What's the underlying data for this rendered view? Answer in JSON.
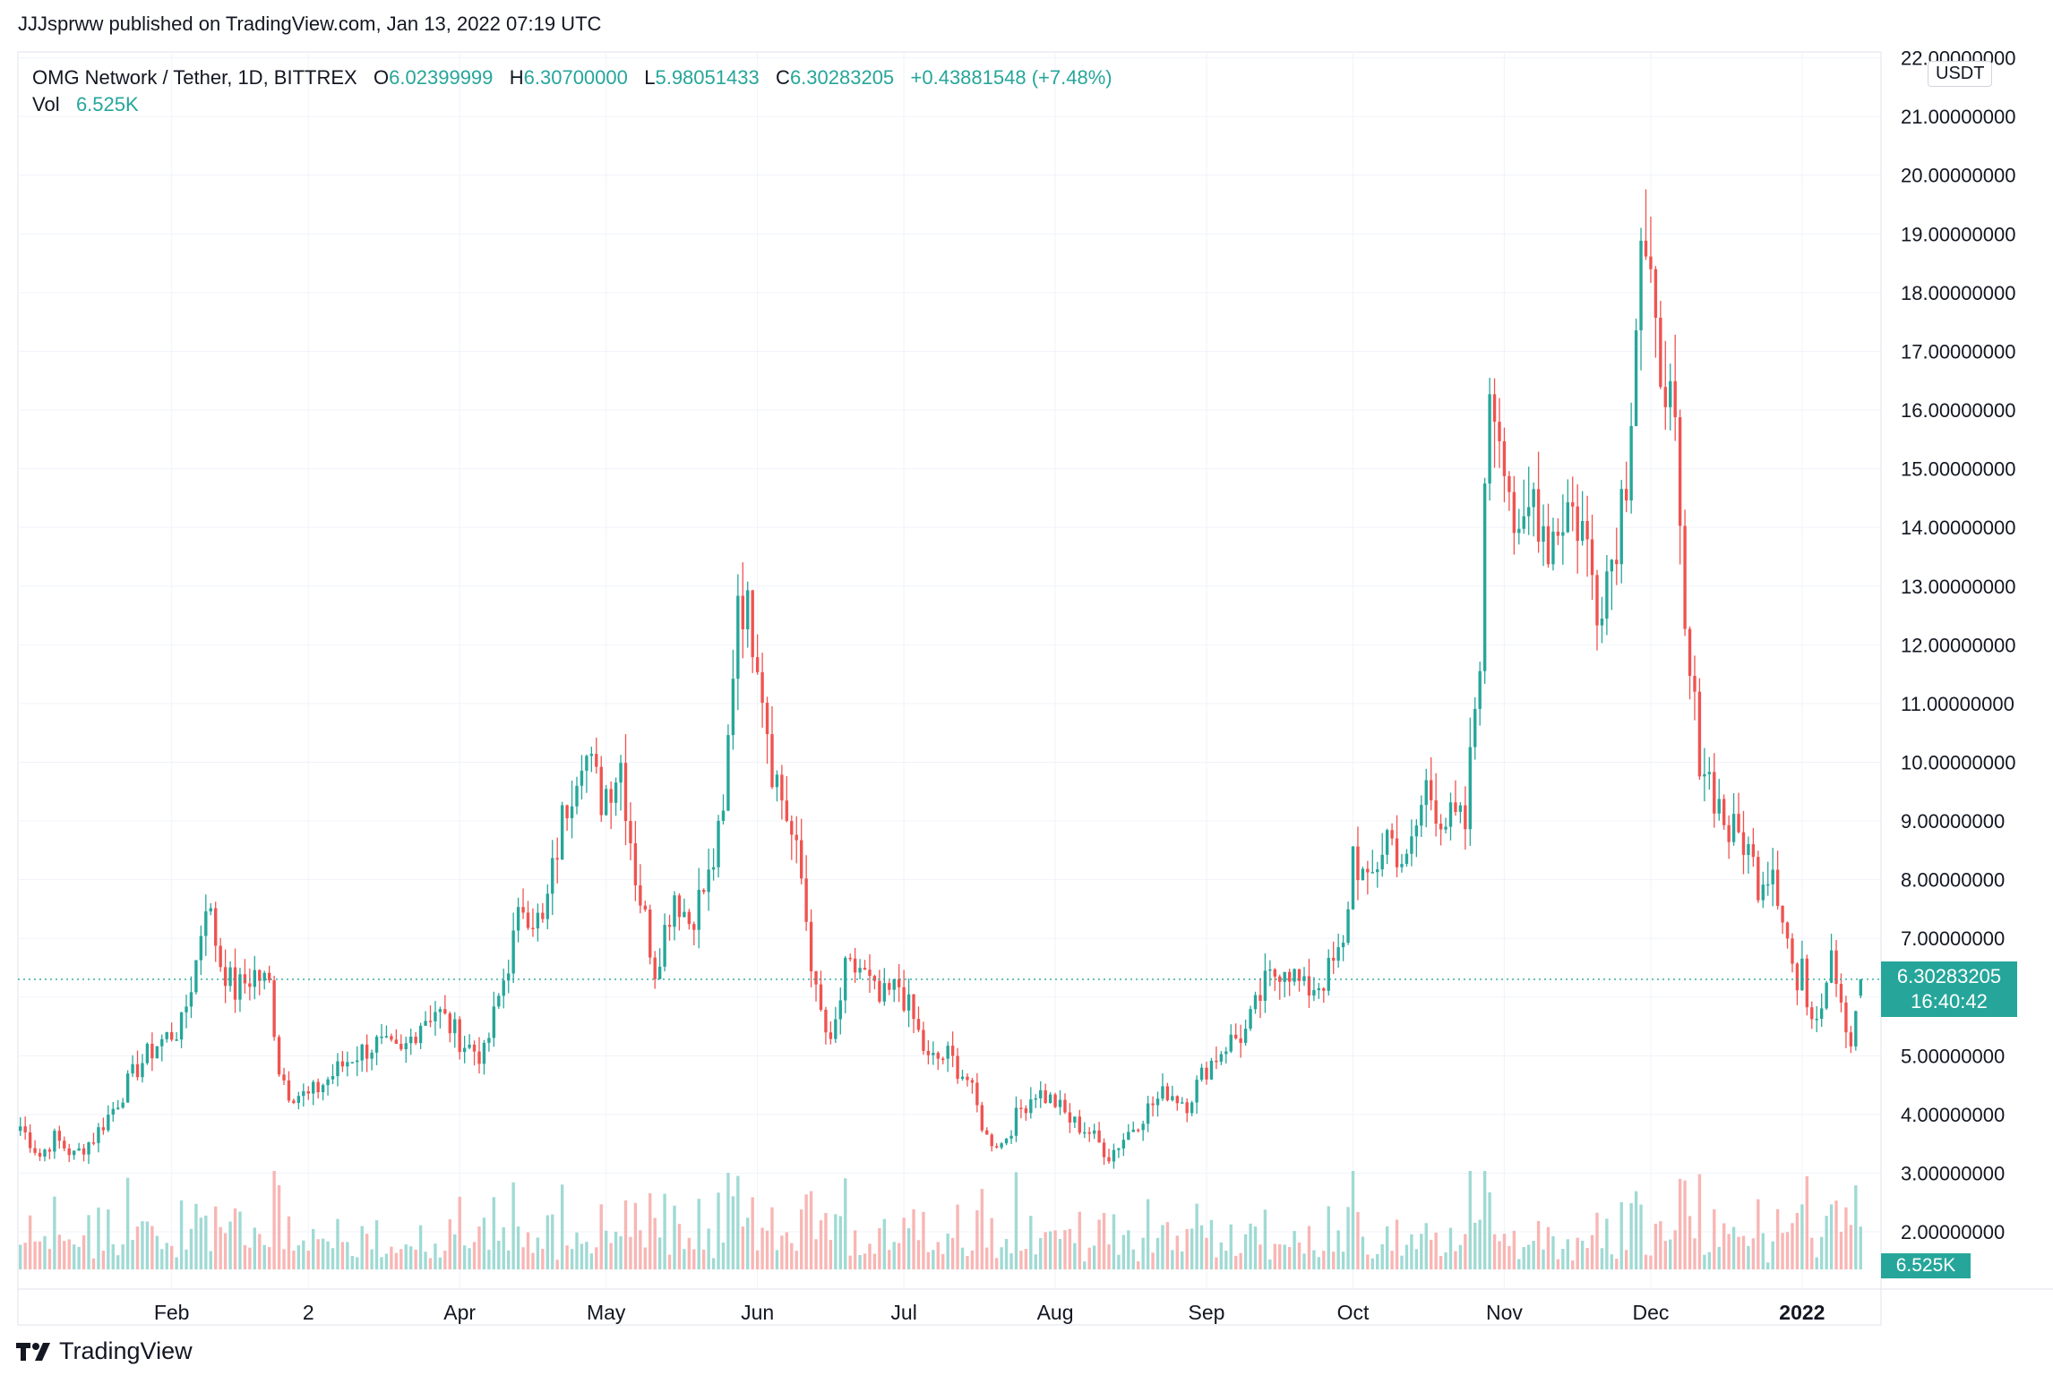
{
  "header": {
    "publisher_line": "JJJsprww published on TradingView.com, Jan 13, 2022 07:19 UTC"
  },
  "legend": {
    "symbol": "OMG Network / Tether, 1D, BITTREX",
    "open_label": "O",
    "open": "6.02399999",
    "high_label": "H",
    "high": "6.30700000",
    "low_label": "L",
    "low": "5.98051433",
    "close_label": "C",
    "close": "6.30283205",
    "change": "+0.43881548 (+7.48%)",
    "vol_label": "Vol",
    "vol": "6.525K"
  },
  "price_axis": {
    "currency": "USDT",
    "last_price": "6.30283205",
    "countdown": "16:40:42",
    "last_volume": "6.525K"
  },
  "footer": {
    "brand": "TradingView"
  },
  "colors": {
    "up": "#26a69a",
    "down": "#ef5350",
    "up_volume": "#8fd3cc",
    "down_volume": "#f7a9a7",
    "grid": "#f0f3fa"
  },
  "chart_data": {
    "type": "candlestick",
    "symbol": "OMG/USDT",
    "interval": "1D",
    "exchange": "BITTREX",
    "y_ticks": [
      "2.00000000",
      "3.00000000",
      "4.00000000",
      "5.00000000",
      "6.00000000",
      "7.00000000",
      "8.00000000",
      "9.00000000",
      "10.00000000",
      "11.00000000",
      "12.00000000",
      "13.00000000",
      "14.00000000",
      "15.00000000",
      "16.00000000",
      "17.00000000",
      "18.00000000",
      "19.00000000",
      "20.00000000",
      "21.00000000",
      "22.00000000"
    ],
    "y_tick_values": [
      2,
      3,
      4,
      5,
      6,
      7,
      8,
      9,
      10,
      11,
      12,
      13,
      14,
      15,
      16,
      17,
      18,
      19,
      20,
      21,
      22
    ],
    "ylim": [
      1.3,
      22.1
    ],
    "x_ticks": [
      "Feb",
      "2",
      "Apr",
      "May",
      "Jun",
      "Jul",
      "Aug",
      "Sep",
      "Oct",
      "Nov",
      "Dec",
      "2022"
    ],
    "x_tick_dates": [
      "2021-02-01",
      "2021-03-01",
      "2021-04-01",
      "2021-05-01",
      "2021-06-01",
      "2021-07-01",
      "2021-08-01",
      "2021-09-01",
      "2021-10-01",
      "2021-11-01",
      "2021-12-01",
      "2022-01-01"
    ],
    "date_range": [
      "2021-01-01",
      "2022-01-13"
    ],
    "last_price": 6.30283205,
    "close_anchors": [
      [
        "2021-01-01",
        3.8
      ],
      [
        "2021-01-05",
        3.3
      ],
      [
        "2021-01-08",
        3.6
      ],
      [
        "2021-01-12",
        3.3
      ],
      [
        "2021-01-16",
        3.6
      ],
      [
        "2021-01-20",
        4.1
      ],
      [
        "2021-01-25",
        4.8
      ],
      [
        "2021-01-29",
        5.2
      ],
      [
        "2021-02-03",
        5.5
      ],
      [
        "2021-02-06",
        6.6
      ],
      [
        "2021-02-08",
        7.7
      ],
      [
        "2021-02-11",
        6.6
      ],
      [
        "2021-02-14",
        6.1
      ],
      [
        "2021-02-18",
        6.4
      ],
      [
        "2021-02-21",
        6.2
      ],
      [
        "2021-02-23",
        4.8
      ],
      [
        "2021-02-25",
        4.4
      ],
      [
        "2021-03-01",
        4.3
      ],
      [
        "2021-03-05",
        4.6
      ],
      [
        "2021-03-10",
        5.0
      ],
      [
        "2021-03-15",
        5.2
      ],
      [
        "2021-03-20",
        5.0
      ],
      [
        "2021-03-24",
        5.6
      ],
      [
        "2021-03-27",
        5.8
      ],
      [
        "2021-04-02",
        5.2
      ],
      [
        "2021-04-06",
        5.0
      ],
      [
        "2021-04-10",
        6.3
      ],
      [
        "2021-04-14",
        7.6
      ],
      [
        "2021-04-18",
        7.2
      ],
      [
        "2021-04-22",
        9.0
      ],
      [
        "2021-04-26",
        10.3
      ],
      [
        "2021-04-30",
        9.4
      ],
      [
        "2021-05-04",
        10.0
      ],
      [
        "2021-05-07",
        8.1
      ],
      [
        "2021-05-11",
        6.5
      ],
      [
        "2021-05-15",
        7.8
      ],
      [
        "2021-05-18",
        7.3
      ],
      [
        "2021-05-22",
        8.0
      ],
      [
        "2021-05-25",
        9.0
      ],
      [
        "2021-05-28",
        13.0
      ],
      [
        "2021-06-01",
        12.0
      ],
      [
        "2021-06-04",
        10.0
      ],
      [
        "2021-06-07",
        9.1
      ],
      [
        "2021-06-10",
        8.0
      ],
      [
        "2021-06-13",
        6.0
      ],
      [
        "2021-06-16",
        5.1
      ],
      [
        "2021-06-19",
        6.4
      ],
      [
        "2021-06-22",
        6.5
      ],
      [
        "2021-06-26",
        5.9
      ],
      [
        "2021-06-30",
        6.2
      ],
      [
        "2021-07-03",
        5.6
      ],
      [
        "2021-07-06",
        4.9
      ],
      [
        "2021-07-10",
        5.0
      ],
      [
        "2021-07-14",
        4.6
      ],
      [
        "2021-07-18",
        3.6
      ],
      [
        "2021-07-21",
        3.5
      ],
      [
        "2021-07-25",
        4.1
      ],
      [
        "2021-07-28",
        4.4
      ],
      [
        "2021-08-01",
        4.2
      ],
      [
        "2021-08-04",
        3.9
      ],
      [
        "2021-08-08",
        3.7
      ],
      [
        "2021-08-12",
        3.3
      ],
      [
        "2021-08-16",
        3.7
      ],
      [
        "2021-08-20",
        4.1
      ],
      [
        "2021-08-24",
        4.4
      ],
      [
        "2021-08-28",
        4.2
      ],
      [
        "2021-09-01",
        4.8
      ],
      [
        "2021-09-05",
        5.2
      ],
      [
        "2021-09-09",
        5.4
      ],
      [
        "2021-09-13",
        6.2
      ],
      [
        "2021-09-17",
        6.6
      ],
      [
        "2021-09-21",
        6.1
      ],
      [
        "2021-09-25",
        6.3
      ],
      [
        "2021-09-29",
        6.8
      ],
      [
        "2021-10-01",
        8.5
      ],
      [
        "2021-10-04",
        7.8
      ],
      [
        "2021-10-08",
        8.8
      ],
      [
        "2021-10-12",
        8.2
      ],
      [
        "2021-10-16",
        9.6
      ],
      [
        "2021-10-20",
        9.0
      ],
      [
        "2021-10-24",
        8.9
      ],
      [
        "2021-10-27",
        12.0
      ],
      [
        "2021-10-29",
        16.5
      ],
      [
        "2021-11-01",
        15.5
      ],
      [
        "2021-11-04",
        13.4
      ],
      [
        "2021-11-07",
        14.6
      ],
      [
        "2021-11-10",
        13.8
      ],
      [
        "2021-11-14",
        14.4
      ],
      [
        "2021-11-17",
        14.0
      ],
      [
        "2021-11-20",
        12.8
      ],
      [
        "2021-11-23",
        13.5
      ],
      [
        "2021-11-26",
        15.0
      ],
      [
        "2021-11-29",
        19.0
      ],
      [
        "2021-12-02",
        17.0
      ],
      [
        "2021-12-04",
        16.8
      ],
      [
        "2021-12-06",
        15.2
      ],
      [
        "2021-12-08",
        12.0
      ],
      [
        "2021-12-11",
        10.2
      ],
      [
        "2021-12-14",
        9.5
      ],
      [
        "2021-12-17",
        8.8
      ],
      [
        "2021-12-20",
        8.7
      ],
      [
        "2021-12-23",
        8.0
      ],
      [
        "2021-12-26",
        8.3
      ],
      [
        "2021-12-29",
        7.0
      ],
      [
        "2021-12-31",
        6.1
      ],
      [
        "2022-01-01",
        6.4
      ],
      [
        "2022-01-03",
        5.7
      ],
      [
        "2022-01-05",
        6.0
      ],
      [
        "2022-01-07",
        6.9
      ],
      [
        "2022-01-09",
        6.0
      ],
      [
        "2022-01-11",
        5.2
      ],
      [
        "2022-01-12",
        5.86
      ],
      [
        "2022-01-13",
        6.3
      ]
    ],
    "last_candle": {
      "open": 6.02399999,
      "high": 6.307,
      "low": 5.98051433,
      "close": 6.30283205,
      "change": 0.43881548,
      "change_pct": 7.48,
      "volume": "6.525K"
    }
  }
}
